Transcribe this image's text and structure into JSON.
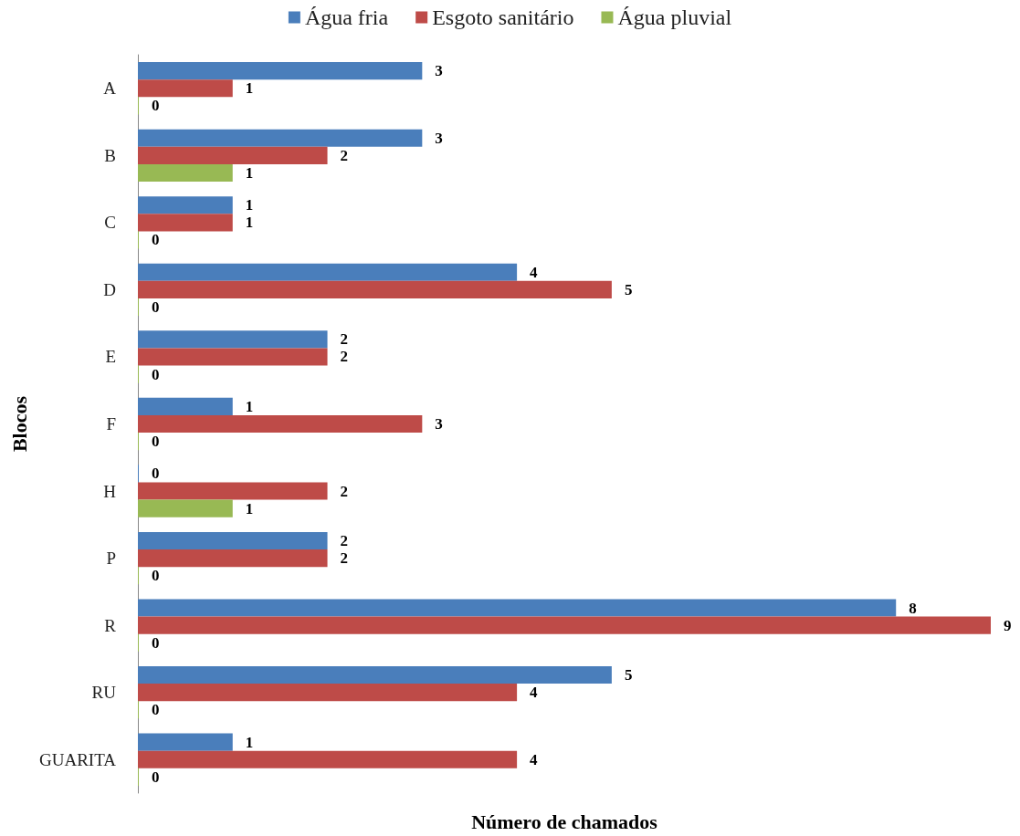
{
  "chart_data": {
    "type": "bar",
    "orientation": "horizontal",
    "xlabel": "Número de chamados",
    "ylabel": "Blocos",
    "categories": [
      "A",
      "B",
      "C",
      "D",
      "E",
      "F",
      "H",
      "P",
      "R",
      "RU",
      "GUARITA"
    ],
    "series": [
      {
        "name": "Água fria",
        "color": "#4a7ebb",
        "values": [
          3,
          3,
          1,
          4,
          2,
          1,
          0,
          2,
          8,
          5,
          1
        ]
      },
      {
        "name": "Esgoto sanitário",
        "color": "#be4b48",
        "values": [
          1,
          2,
          1,
          5,
          2,
          3,
          2,
          2,
          9,
          4,
          4
        ]
      },
      {
        "name": "Água pluvial",
        "color": "#98b954",
        "values": [
          0,
          1,
          0,
          0,
          0,
          0,
          1,
          0,
          0,
          0,
          0
        ]
      }
    ],
    "data_labels": true,
    "grid": false,
    "legend": "top",
    "tick_labels": "y"
  }
}
